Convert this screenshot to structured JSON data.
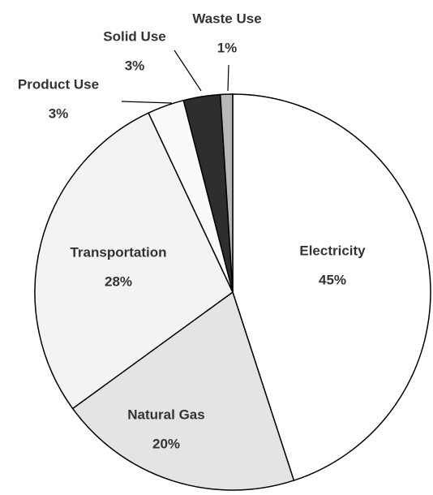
{
  "chart_data": {
    "type": "pie",
    "categories": [
      "Electricity",
      "Natural Gas",
      "Transportation",
      "Product Use",
      "Solid Use",
      "Waste Use"
    ],
    "values": [
      45,
      20,
      28,
      3,
      3,
      1
    ],
    "value_labels": [
      "45%",
      "20%",
      "28%",
      "3%",
      "3%",
      "1%"
    ],
    "colors": [
      "#ffffff",
      "#e4e4e4",
      "#f3f3f3",
      "#fafafa",
      "#2e2e2e",
      "#b8b8b8"
    ]
  }
}
